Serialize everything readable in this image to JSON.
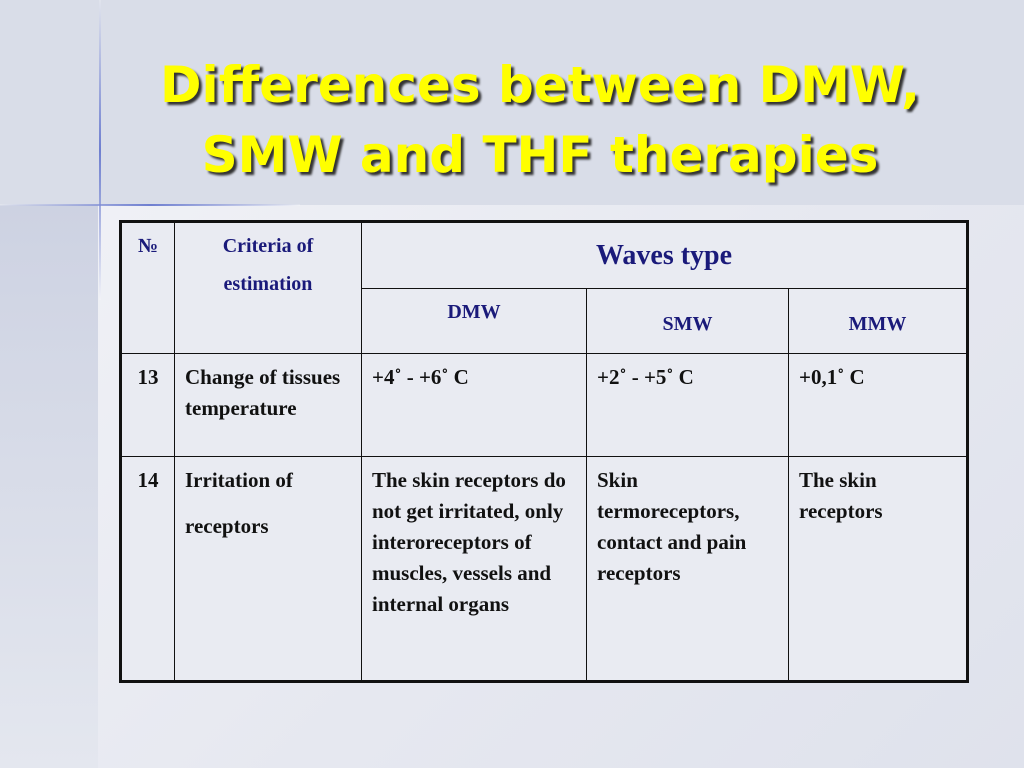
{
  "title": {
    "lines": [
      "Differences between DMW,",
      "SMW and THF therapies"
    ]
  },
  "table": {
    "header": {
      "number": "№",
      "criteria": "Criteria of estimation",
      "group": "Waves type",
      "columns": [
        "DMW",
        "SMW",
        "MMW"
      ]
    },
    "rows": [
      [
        "13",
        "Change of tissues temperature",
        "+4˚ - +6˚ C",
        "+2˚ - +5˚ C",
        "+0,1˚ C"
      ],
      [
        "14",
        "Irritation of receptors",
        "The skin receptors do not get irritated, only interoreceptors of muscles, vessels and internal organs",
        "Skin termoreceptors, contact and pain receptors",
        "The skin receptors"
      ]
    ]
  }
}
